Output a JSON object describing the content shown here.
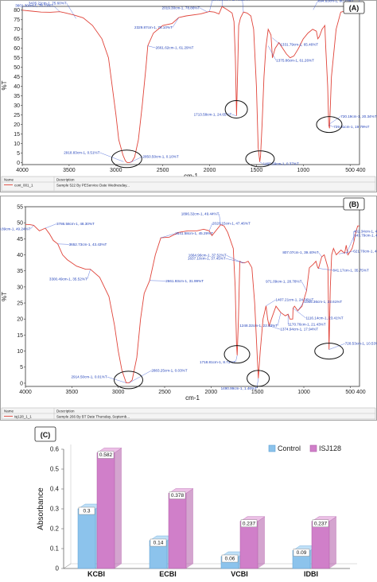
{
  "chart_data": [
    {
      "type": "line",
      "panel_label": "(A)",
      "xlabel": "cm-1",
      "ylabel": "%T",
      "xlim": [
        4000,
        400
      ],
      "ylim": [
        -1,
        82
      ],
      "x_ticks": [
        "4000",
        "3500",
        "3000",
        "2500",
        "2000",
        "1500",
        "1000",
        "500 400"
      ],
      "y_ticks": [
        "0",
        "5",
        "10",
        "15",
        "20",
        "25",
        "30",
        "35",
        "40",
        "45",
        "50",
        "55",
        "60",
        "65",
        "70",
        "75",
        "80"
      ],
      "x": [
        4000,
        3900,
        3800,
        3700,
        3600,
        3550,
        3450,
        3350,
        3250,
        3150,
        3080,
        3040,
        3000,
        2970,
        2925,
        2900,
        2880,
        2855,
        2830,
        2800,
        2760,
        2720,
        2680,
        2660,
        2600,
        2500,
        2400,
        2329,
        2250,
        2100,
        2002,
        1950,
        1900,
        1867,
        1820,
        1760,
        1740,
        1725,
        1713,
        1700,
        1690,
        1670,
        1639,
        1600,
        1560,
        1530,
        1500,
        1482,
        1465,
        1456,
        1440,
        1420,
        1400,
        1375,
        1345,
        1330,
        1300,
        1260,
        1220,
        1180,
        1140,
        1100,
        1050,
        1000,
        950,
        900,
        860,
        845,
        830,
        800,
        770,
        760,
        740,
        729,
        720,
        700,
        650,
        600,
        550,
        520,
        500,
        468,
        420,
        400
      ],
      "y": [
        80,
        79.5,
        79,
        78.9,
        79.2,
        78.7,
        77.5,
        76,
        72,
        65,
        55,
        40,
        25,
        12,
        4,
        1,
        0.1,
        0.1,
        0.5,
        3,
        12,
        30,
        50,
        61.3,
        68,
        72,
        73,
        76.1,
        77,
        78,
        79.3,
        79,
        78,
        81.9,
        80.5,
        78.5,
        74,
        55,
        24.6,
        50,
        72,
        76,
        79,
        78.5,
        77,
        70,
        40,
        8,
        0.4,
        3.7,
        20,
        45,
        60,
        70,
        67,
        55,
        60,
        63,
        60,
        57,
        55,
        56,
        60,
        65,
        68,
        70,
        69,
        65,
        66,
        70,
        72,
        60,
        40,
        19.8,
        18,
        45,
        70,
        79,
        79.5,
        80,
        80,
        79.2,
        79,
        79
      ],
      "annotations": [
        {
          "text": "3601.30cm-1, 78.73%T",
          "x": 3601,
          "y": 79.3
        },
        {
          "text": "3426.21cm-1, 75.60%T",
          "x": 3426,
          "y": 75.6
        },
        {
          "text": "2918.83cm-1, 0.51%T",
          "x": 2918,
          "y": 0.5
        },
        {
          "text": "2850.50cm-1, 0.10%T",
          "x": 2850,
          "y": 0.1
        },
        {
          "text": "2661.62cm-1, 61.29%T",
          "x": 2661,
          "y": 61.3
        },
        {
          "text": "2329.87cm-1, 76.10%T",
          "x": 2329,
          "y": 76.1
        },
        {
          "text": "2002.06cm-1, 79.29%T",
          "x": 2002,
          "y": 79.3
        },
        {
          "text": "1867.26cm-1, 81.97%T",
          "x": 1867,
          "y": 81.9
        },
        {
          "text": "2019.30cm-1, 78.86%T",
          "x": 2019,
          "y": 78.9
        },
        {
          "text": "1639.67cm-1, 78.87%T",
          "x": 1639,
          "y": 78.9
        },
        {
          "text": "1713.58cm-1, 24.65%T",
          "x": 1713,
          "y": 24.6
        },
        {
          "text": "1465.59cm-1, 0.37%T",
          "x": 1465,
          "y": 0.4
        },
        {
          "text": "1331.79cm-1, 65.46%T",
          "x": 1331,
          "y": 65.5
        },
        {
          "text": "1375.86cm-1, 61.26%T",
          "x": 1375,
          "y": 61.3
        },
        {
          "text": "894.63cm-1, 80.21%T",
          "x": 894,
          "y": 80.2
        },
        {
          "text": "549.63cm-1, 79.79%T",
          "x": 549,
          "y": 79.8
        },
        {
          "text": "467.50cm-1, 79.20%T",
          "x": 467,
          "y": 79.2
        },
        {
          "text": "720.19cm-1, 20.34%T",
          "x": 720,
          "y": 20.3
        },
        {
          "text": "729.01cm-1, 19.79%T",
          "x": 729,
          "y": 19.8
        }
      ],
      "legend": {
        "col1": "Name",
        "col2": "Description",
        "row_name": "cont_001_1",
        "row_desc": "Sample 522 By PEService Date Wednesday..."
      }
    },
    {
      "type": "line",
      "panel_label": "(B)",
      "xlabel": "cm-1",
      "ylabel": "%T",
      "xlim": [
        4000,
        400
      ],
      "ylim": [
        -1,
        55
      ],
      "x_ticks": [
        "4000",
        "3500",
        "3000",
        "2500",
        "2000",
        "1500",
        "1000",
        "500 400"
      ],
      "y_ticks": [
        "0",
        "5",
        "10",
        "15",
        "20",
        "25",
        "30",
        "35",
        "40",
        "45",
        "50",
        "55"
      ],
      "x": [
        4000,
        3950,
        3911,
        3850,
        3786,
        3740,
        3700,
        3652,
        3600,
        3550,
        3450,
        3350,
        3300,
        3200,
        3100,
        3040,
        3000,
        2960,
        2914,
        2883,
        2850,
        2800,
        2760,
        2720,
        2661,
        2600,
        2541,
        2450,
        2350,
        2250,
        2150,
        2080,
        2020,
        1990,
        1896,
        1860,
        1820,
        1760,
        1740,
        1725,
        1718,
        1705,
        1690,
        1664,
        1637,
        1600,
        1560,
        1530,
        1505,
        1490,
        1470,
        1440,
        1407,
        1390,
        1374,
        1350,
        1300,
        1248,
        1200,
        1170,
        1150,
        1120,
        1116,
        1100,
        1065,
        1020,
        1000,
        971,
        940,
        900,
        870,
        850,
        841,
        830,
        807,
        780,
        760,
        740,
        728,
        715,
        700,
        680,
        650,
        600,
        560,
        543,
        525,
        500,
        480,
        462,
        440,
        420,
        400
      ],
      "y": [
        49.5,
        49.4,
        49.2,
        47.5,
        48.3,
        46.5,
        44.5,
        43.4,
        40,
        38.5,
        36.5,
        35.5,
        35.5,
        33,
        27,
        18,
        10,
        4,
        0.1,
        0.1,
        1,
        8,
        20,
        28,
        32,
        40,
        45.3,
        45.5,
        47,
        47.5,
        47.5,
        48,
        47.5,
        46,
        49.4,
        49,
        47,
        42,
        30,
        12,
        8.7,
        20,
        38,
        37.5,
        37.5,
        38,
        36,
        25,
        10,
        1.5,
        10,
        20,
        24.1,
        20,
        17.9,
        20,
        24,
        22,
        21,
        21.5,
        20,
        20,
        23.4,
        24,
        22.6,
        24,
        26,
        28.8,
        36,
        37,
        38,
        36,
        35.8,
        37,
        39.4,
        40,
        38,
        36,
        10.5,
        30,
        40,
        42,
        40,
        41.5,
        40.5,
        43,
        40,
        41,
        42,
        43.9,
        47,
        49,
        49
      ],
      "annotations": [
        {
          "text": "3786.58cm-1, 48.30%T",
          "x": 3786,
          "y": 48.3
        },
        {
          "text": "3652.73cm-1, 43.43%T",
          "x": 3652,
          "y": 43.4
        },
        {
          "text": "3910.89cm-1, 49.24%T",
          "x": 3911,
          "y": 49.2
        },
        {
          "text": "3300.49cm-1, 35.52%T",
          "x": 3300,
          "y": 35.5
        },
        {
          "text": "2914.50cm-1, 0.01%T",
          "x": 2914,
          "y": 0.1
        },
        {
          "text": "2883.25cm-1, 0.03%T",
          "x": 2883,
          "y": 0.1
        },
        {
          "text": "2661.93cm-1, 31.99%T",
          "x": 2661,
          "y": 32
        },
        {
          "text": "2541.58cm-1, 45.29%T",
          "x": 2541,
          "y": 45.3
        },
        {
          "text": "2020.15cm-1, 47.46%T",
          "x": 2020,
          "y": 47.5
        },
        {
          "text": "1896.32cm-1, 49.44%T",
          "x": 1896,
          "y": 49.4
        },
        {
          "text": "1664.96cm-1, 37.52%T",
          "x": 1664,
          "y": 37.5
        },
        {
          "text": "1637.10cm-1, 37.45%T",
          "x": 1637,
          "y": 37.5
        },
        {
          "text": "1718.81cm-1, 8.73%T",
          "x": 1718,
          "y": 8.7
        },
        {
          "text": "1490.99cm-1, 1.46%T",
          "x": 1490,
          "y": 1.5
        },
        {
          "text": "1407.21cm-1, 24.06%T",
          "x": 1407,
          "y": 24.1
        },
        {
          "text": "1374.94cm-1, 17.94%T",
          "x": 1374,
          "y": 17.9
        },
        {
          "text": "1248.32cm-1, 22.03%T",
          "x": 1248,
          "y": 22
        },
        {
          "text": "1170.76cm-1, 21.43%T",
          "x": 1170,
          "y": 21.4
        },
        {
          "text": "1065.36cm-1, 22.61%T",
          "x": 1065,
          "y": 22.6
        },
        {
          "text": "1116.14cm-1, 23.41%T",
          "x": 1116,
          "y": 23.4
        },
        {
          "text": "971.09cm-1, 28.78%T",
          "x": 971,
          "y": 28.8
        },
        {
          "text": "807.07cm-1, 39.40%T",
          "x": 807,
          "y": 39.4
        },
        {
          "text": "841.17cm-1, 35.75%T",
          "x": 841,
          "y": 35.8
        },
        {
          "text": "728.53cm-1, 10.53%T",
          "x": 728,
          "y": 10.5
        },
        {
          "text": "462.34cm-1, 43.97%T",
          "x": 462,
          "y": 44
        },
        {
          "text": "543.79cm-1, 40.19%T",
          "x": 543,
          "y": 40.2
        },
        {
          "text": "621.70cm-1, 40.27%T",
          "x": 621,
          "y": 40.3
        }
      ],
      "legend": {
        "col1": "Name",
        "col2": "Description",
        "row_name": "isj128_1_1",
        "row_desc": "Sample 266 By BT Date Thursday, Septemb..."
      }
    },
    {
      "type": "bar",
      "panel_label": "(C)",
      "categories": [
        "KCBI",
        "ECBI",
        "VCBI",
        "IDBI"
      ],
      "series": [
        {
          "name": "Control",
          "values": [
            0.3,
            0.14,
            0.06,
            0.09
          ],
          "labels": [
            "0.3",
            "0.14",
            "0.06",
            "0.09"
          ],
          "color": "#8cc3ec"
        },
        {
          "name": "ISJ128",
          "values": [
            0.582,
            0.378,
            0.237,
            0.237
          ],
          "labels": [
            "0.582",
            "0.378",
            "0.237",
            "0.237"
          ],
          "color": "#d07fc9"
        }
      ],
      "ylabel": "Absorbance",
      "ylim": [
        0,
        0.6
      ],
      "y_ticks": [
        "0",
        "0.1",
        "0.2",
        "0.3",
        "0.4",
        "0.5",
        "0.6"
      ],
      "legend_position": "top-right"
    }
  ]
}
